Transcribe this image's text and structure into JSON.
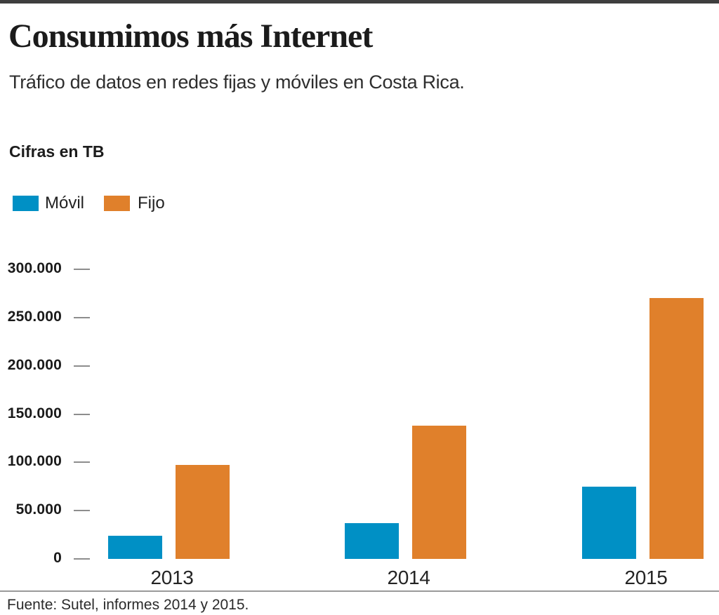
{
  "header": {
    "title": "Consumimos más Internet",
    "subtitle": "Tráfico de datos en redes fijas y móviles en Costa Rica."
  },
  "chart_data": {
    "type": "bar",
    "title": "Consumimos más Internet",
    "subtitle": "Tráfico de datos en redes fijas y móviles en Costa Rica.",
    "units_label": "Cifras en TB",
    "categories": [
      "2013",
      "2014",
      "2015"
    ],
    "series": [
      {
        "name": "Móvil",
        "color": "#0090C5",
        "values": [
          24000,
          37000,
          75000
        ]
      },
      {
        "name": "Fijo",
        "color": "#E0802B",
        "values": [
          97000,
          138000,
          270000
        ]
      }
    ],
    "xlabel": "",
    "ylabel": "",
    "ylim": [
      0,
      300000
    ],
    "ytick_interval": 50000,
    "ytick_labels": [
      "300.000",
      "250.000",
      "200.000",
      "150.000",
      "100.000",
      "50.000",
      "0"
    ],
    "grid": false,
    "legend_position": "top-left"
  },
  "colors": {
    "movil": "#0090C5",
    "fijo": "#E0802B",
    "top_bar": "#3E3E3E",
    "tick": "#8D8D8D",
    "divider": "#9A9A9A"
  },
  "footer": {
    "source": "Fuente: Sutel, informes 2014 y 2015."
  }
}
